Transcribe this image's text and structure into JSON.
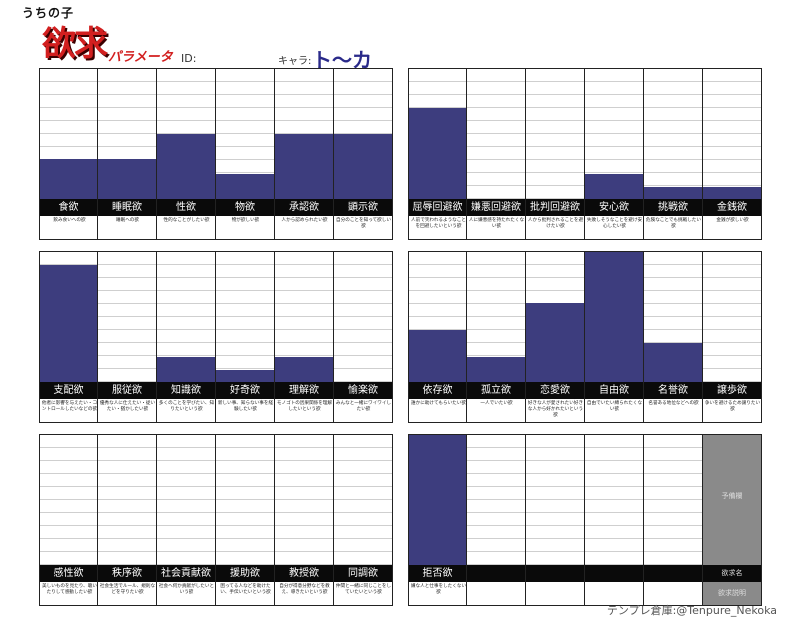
{
  "header": {
    "brand_small": "うちの子",
    "brand_big": "欲求",
    "brand_sub": "パラメータ",
    "id_label": "ID:",
    "chara_label": "キャラ:",
    "chara_value": "ト～カ"
  },
  "credit": "テンプレ倉庫:@Tenpure_Nekoka",
  "groups": [
    {
      "items": [
        {
          "name": "食欲",
          "desc": "飲み食いへの欲",
          "level": 0.31
        },
        {
          "name": "睡眠欲",
          "desc": "睡眠への欲",
          "level": 0.31
        },
        {
          "name": "性欲",
          "desc": "性的なことがしたい欲",
          "level": 0.5
        },
        {
          "name": "物欲",
          "desc": "物が欲しい欲",
          "level": 0.19
        },
        {
          "name": "承認欲",
          "desc": "人から認められたい欲",
          "level": 0.5
        },
        {
          "name": "顕示欲",
          "desc": "自分のことを知って欲しい欲",
          "level": 0.5
        }
      ]
    },
    {
      "items": [
        {
          "name": "屈辱回避欲",
          "desc": "人前で笑われるようなことを回避したいという欲",
          "level": 0.7
        },
        {
          "name": "嫌悪回避欲",
          "desc": "人に嫌悪感を持たれたくない欲",
          "level": 0.0
        },
        {
          "name": "批判回避欲",
          "desc": "人から批判されることを避けたい欲",
          "level": 0.0
        },
        {
          "name": "安心欲",
          "desc": "失敗しそうなことを避け安心したい欲",
          "level": 0.19
        },
        {
          "name": "挑戦欲",
          "desc": "危険なことでも挑戦したい欲",
          "level": 0.09
        },
        {
          "name": "金銭欲",
          "desc": "金銭が欲しい欲",
          "level": 0.09
        }
      ]
    },
    {
      "items": [
        {
          "name": "支配欲",
          "desc": "他者に影響を与えたい・コントロールしたいなどの欲",
          "level": 0.9
        },
        {
          "name": "服従欲",
          "desc": "優秀な人に仕えたい・従いたい・猶かしたい欲",
          "level": 0.0
        },
        {
          "name": "知識欲",
          "desc": "多くのことを学びたい、知りたいという欲",
          "level": 0.19
        },
        {
          "name": "好奇欲",
          "desc": "新しい事、知らない事を経験したい欲",
          "level": 0.09
        },
        {
          "name": "理解欲",
          "desc": "モノゴトの因果関係を理解したいという欲",
          "level": 0.19
        },
        {
          "name": "愉楽欲",
          "desc": "みんなと一緒にワイワイしたい欲",
          "level": 0.0
        }
      ]
    },
    {
      "items": [
        {
          "name": "依存欲",
          "desc": "誰かに助けてもらいたい欲",
          "level": 0.4
        },
        {
          "name": "孤立欲",
          "desc": "一人でいたい欲",
          "level": 0.19
        },
        {
          "name": "恋愛欲",
          "desc": "好きな人が愛されたい好きな人から好かれたいという欲",
          "level": 0.61
        },
        {
          "name": "自由欲",
          "desc": "自由でいたい縛られたくない欲",
          "level": 1.0
        },
        {
          "name": "名誉欲",
          "desc": "名誉ある地位などへの欲",
          "level": 0.3
        },
        {
          "name": "譲歩欲",
          "desc": "争いを避けるため譲りたい欲",
          "level": 0.0
        }
      ]
    },
    {
      "items": [
        {
          "name": "感性欲",
          "desc": "美しいものを見たり、聴いたりして感動したい欲",
          "level": 0.0
        },
        {
          "name": "秩序欲",
          "desc": "社会生活でルール、規則などを守りたい欲",
          "level": 0.0
        },
        {
          "name": "社会貢献欲",
          "desc": "社会へ何か貢献がしたいという欲",
          "level": 0.0
        },
        {
          "name": "援助欲",
          "desc": "困ってる人などを助けたい、手伝いたいという欲",
          "level": 0.0
        },
        {
          "name": "教授欲",
          "desc": "自分が得意分野などを教え、導きたいという欲",
          "level": 0.0
        },
        {
          "name": "同調欲",
          "desc": "仲間と一緒に同じことをしていたいという欲",
          "level": 0.0
        }
      ]
    },
    {
      "items": [
        {
          "name": "拒否欲",
          "desc": "嫌な人と仕事をしたくない欲",
          "level": 1.0
        },
        {
          "name": "",
          "desc": "",
          "level": 0.0
        },
        {
          "name": "",
          "desc": "",
          "level": 0.0
        },
        {
          "name": "",
          "desc": "",
          "level": 0.0
        },
        {
          "name": "",
          "desc": "",
          "level": 0.0
        },
        {
          "name": "",
          "desc": "",
          "level": 0.0,
          "gray": true,
          "gray_top": "予備欄",
          "gray_mid": "欲求名",
          "gray_bottom": "欲求説明"
        }
      ]
    }
  ]
}
